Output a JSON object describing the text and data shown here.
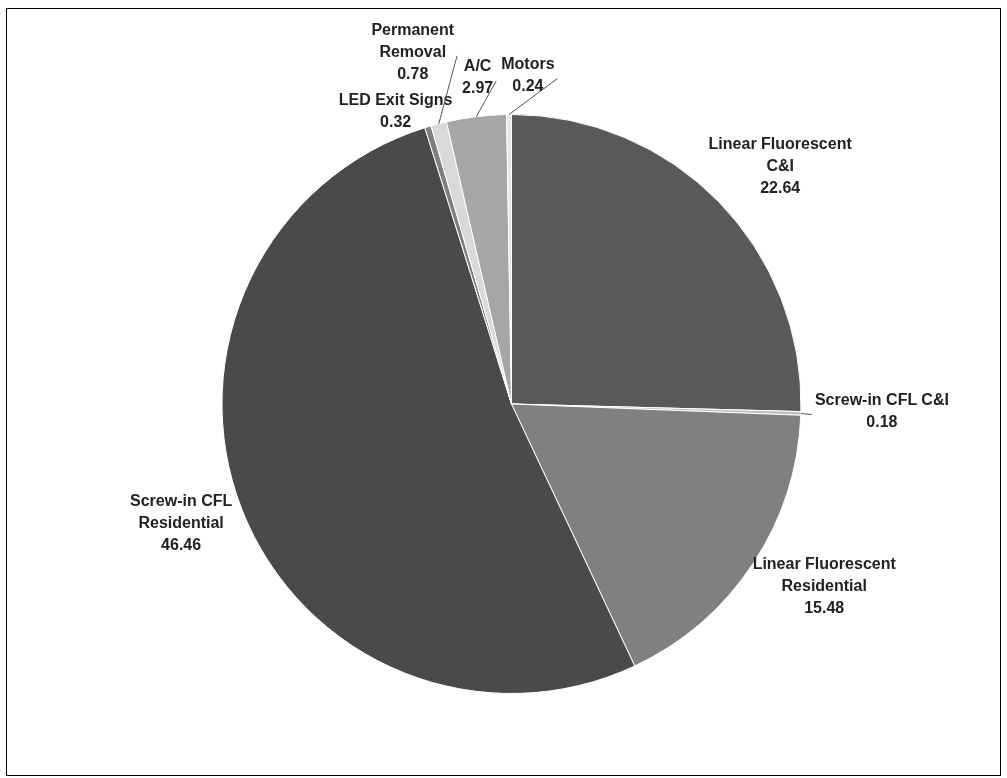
{
  "chart_data": {
    "type": "pie",
    "categories": [
      "Linear Fluorescent C&I",
      "Screw-in CFL C&I",
      "Linear Fluorescent Residential",
      "Screw-in CFL Residential",
      "LED Exit Signs",
      "Permanent Removal",
      "A/C",
      "Motors"
    ],
    "values": [
      22.64,
      0.18,
      15.48,
      46.46,
      0.32,
      0.78,
      2.97,
      0.24
    ],
    "colors": [
      "#595959",
      "#bfbfbf",
      "#808080",
      "#4a4a4a",
      "#7f7f7f",
      "#d9d9d9",
      "#a6a6a6",
      "#e6e6e6"
    ],
    "data_labels": true,
    "legend": false
  }
}
